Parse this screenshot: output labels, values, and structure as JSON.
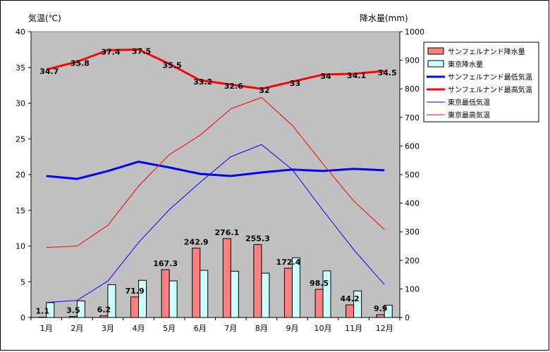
{
  "chart_data": {
    "type": "bar",
    "y_left_label": "気温(℃)",
    "y_right_label": "降水量(mm)",
    "categories": [
      "1月",
      "2月",
      "3月",
      "4月",
      "5月",
      "6月",
      "7月",
      "8月",
      "9月",
      "10月",
      "11月",
      "12月"
    ],
    "y_left_ticks": [
      "0",
      "5",
      "10",
      "15",
      "20",
      "25",
      "30",
      "35",
      "40"
    ],
    "y_right_ticks": [
      "0",
      "100",
      "200",
      "300",
      "400",
      "500",
      "600",
      "700",
      "800",
      "900",
      "1000"
    ],
    "ylim_left": [
      0,
      40
    ],
    "ylim_right": [
      0,
      1000
    ],
    "grid": false,
    "legend_position": "right",
    "series": [
      {
        "name": "サンフェルナンド降水量",
        "type": "bar",
        "axis": "right",
        "color": "#ff8080",
        "values": [
          1.1,
          3.5,
          6.2,
          71.9,
          167.3,
          242.9,
          276.1,
          255.3,
          172.4,
          98.5,
          44.2,
          9.9
        ],
        "labels": [
          "1.1",
          "3.5",
          "6.2",
          "71.9",
          "167.3",
          "242.9",
          "276.1",
          "255.3",
          "172.4",
          "98.5",
          "44.2",
          "9.9"
        ]
      },
      {
        "name": "東京降水量",
        "type": "bar",
        "axis": "right",
        "color": "#ccffff",
        "values": [
          52,
          58,
          115,
          130,
          128,
          165,
          162,
          155,
          209,
          163,
          93,
          43
        ]
      },
      {
        "name": "サンフェルナンド最低気温",
        "type": "line",
        "axis": "left",
        "color": "#0000ff",
        "width": 3,
        "values": [
          19.8,
          19.4,
          20.5,
          21.8,
          21.0,
          20.1,
          19.8,
          20.3,
          20.7,
          20.5,
          20.8,
          20.6
        ]
      },
      {
        "name": "サンフェルナンド最高気温",
        "type": "line",
        "axis": "left",
        "color": "#ff0000",
        "width": 3,
        "values": [
          34.7,
          35.8,
          37.4,
          37.5,
          35.5,
          33.2,
          32.6,
          32,
          33,
          34,
          34.1,
          34.5
        ],
        "labels": [
          "34.7",
          "35.8",
          "37.4",
          "37.5",
          "35.5",
          "33.2",
          "32.6",
          "32",
          "33",
          "34",
          "34.1",
          "34.5"
        ]
      },
      {
        "name": "東京最低気温",
        "type": "line",
        "axis": "left",
        "color": "#0000ff",
        "width": 1,
        "values": [
          2.1,
          2.4,
          5.1,
          10.5,
          15.1,
          18.9,
          22.5,
          24.2,
          20.7,
          15.0,
          9.5,
          4.6
        ]
      },
      {
        "name": "東京最高気温",
        "type": "line",
        "axis": "left",
        "color": "#ff0000",
        "width": 1,
        "values": [
          9.8,
          10.0,
          12.9,
          18.4,
          22.8,
          25.5,
          29.2,
          30.8,
          26.9,
          21.5,
          16.3,
          12.3
        ]
      }
    ]
  }
}
